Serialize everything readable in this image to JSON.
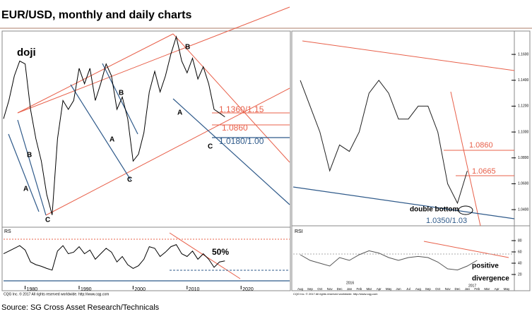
{
  "title": "EUR/USD, monthly and daily charts",
  "source": "Source: SG Cross Asset Research/Technicals",
  "notes": [
    "CQG Inc. © 2017 All rights reserved worldwide. http://www.cqg.com",
    "CQG Inc. © 2017 All rights reserved worldwide. http://www.cqg.com"
  ],
  "annotations": [
    "doji",
    "B",
    "A",
    "C",
    "B",
    "A",
    "C",
    "B",
    "A",
    "C",
    "1.1360/1.15",
    "1.0860",
    "1.0180/1.00",
    "RS",
    "50%",
    "1.0860",
    "1.0665",
    "double bottom",
    "1.0350/1.03",
    "RSI",
    "positive",
    "divergence",
    "2016",
    "2017"
  ],
  "chart_data": [
    {
      "type": "line",
      "x": [
        1976,
        1977,
        1978,
        1979,
        1980,
        1981,
        1982,
        1983,
        1984,
        1985,
        1986,
        1987,
        1988,
        1989,
        1990,
        1991,
        1992,
        1993,
        1994,
        1995,
        1996,
        1997,
        1998,
        1999,
        2000,
        2001,
        2002,
        2003,
        2004,
        2005,
        2006,
        2007,
        2008,
        2009,
        2010,
        2011,
        2012,
        2013,
        2014,
        2015,
        2016,
        2017
      ],
      "values": [
        1.05,
        1.15,
        1.3,
        1.4,
        1.38,
        1.1,
        0.95,
        0.85,
        0.72,
        0.65,
        0.95,
        1.15,
        1.1,
        1.15,
        1.35,
        1.25,
        1.35,
        1.15,
        1.25,
        1.38,
        1.3,
        1.1,
        1.17,
        1.05,
        0.85,
        0.88,
        0.98,
        1.2,
        1.33,
        1.2,
        1.3,
        1.45,
        1.58,
        1.4,
        1.32,
        1.42,
        1.28,
        1.36,
        1.25,
        1.1,
        1.08,
        1.06
      ],
      "xlim": [
        1976,
        2029
      ],
      "ylim": [
        0.62,
        1.62
      ],
      "log_scale": true,
      "color": "#000000"
    },
    {
      "type": "line",
      "x": [
        1976,
        1977,
        1978,
        1979,
        1980,
        1981,
        1982,
        1983,
        1984,
        1985,
        1986,
        1987,
        1988,
        1989,
        1990,
        1991,
        1992,
        1993,
        1994,
        1995,
        1996,
        1997,
        1998,
        1999,
        2000,
        2001,
        2002,
        2003,
        2004,
        2005,
        2006,
        2007,
        2008,
        2009,
        2010,
        2011,
        2012,
        2013,
        2014,
        2015,
        2016,
        2017
      ],
      "values": [
        55,
        60,
        65,
        70,
        62,
        40,
        35,
        32,
        28,
        25,
        60,
        70,
        55,
        58,
        68,
        55,
        62,
        45,
        55,
        65,
        58,
        40,
        50,
        35,
        28,
        33,
        45,
        68,
        65,
        50,
        58,
        68,
        72,
        55,
        50,
        60,
        45,
        55,
        45,
        30,
        40,
        42
      ],
      "xlim": [
        1976,
        2029
      ],
      "ylim": [
        0,
        100
      ],
      "xticks": [
        1980,
        1990,
        2000,
        2010,
        2020
      ],
      "color": "#000000"
    },
    {
      "type": "line",
      "categories": [
        "Aug",
        "Sep",
        "Oct",
        "Nov",
        "Dec",
        "Jan",
        "Feb",
        "Mar",
        "Apr",
        "May",
        "Jun",
        "Jul",
        "Aug",
        "Sep",
        "Oct",
        "Nov",
        "Dec",
        "Jan",
        "Feb",
        "Mar",
        "Apr",
        "May"
      ],
      "values": [
        1.14,
        1.12,
        1.1,
        1.07,
        1.09,
        1.085,
        1.1,
        1.13,
        1.14,
        1.13,
        1.11,
        1.11,
        1.12,
        1.12,
        1.1,
        1.06,
        1.045,
        1.07,
        null,
        null,
        null,
        null
      ],
      "ylim": [
        1.0275,
        1.1775
      ],
      "yticks": [
        {
          "value": 1.16,
          "label": "1.1600"
        },
        {
          "value": 1.14,
          "label": "1.1400"
        },
        {
          "value": 1.12,
          "label": "1.1200"
        },
        {
          "value": 1.1,
          "label": "1.1000"
        },
        {
          "value": 1.08,
          "label": "1.0800"
        },
        {
          "value": 1.06,
          "label": "1.0600"
        },
        {
          "value": 1.04,
          "label": "1.0400"
        }
      ],
      "color": "#222222"
    },
    {
      "type": "line",
      "categories": [
        "Aug",
        "Sep",
        "Oct",
        "Nov",
        "Dec",
        "Jan",
        "Feb",
        "Mar",
        "Apr",
        "May",
        "Jun",
        "Jul",
        "Aug",
        "Sep",
        "Oct",
        "Nov",
        "Dec",
        "Jan",
        "Feb",
        "Mar",
        "Apr",
        "May"
      ],
      "values": [
        55,
        45,
        40,
        35,
        50,
        45,
        55,
        62,
        58,
        50,
        45,
        50,
        52,
        50,
        42,
        30,
        28,
        35,
        45,
        null,
        null,
        null
      ],
      "ylim": [
        0,
        100
      ],
      "yticks": [
        20,
        40,
        60,
        80
      ],
      "color": "#555555"
    }
  ]
}
